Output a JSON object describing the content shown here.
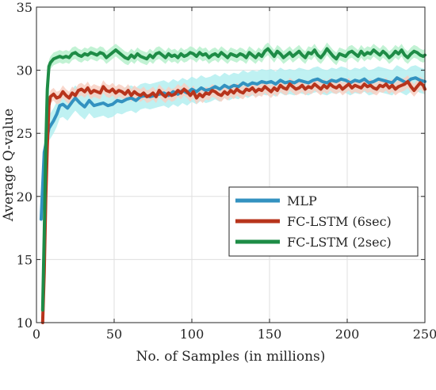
{
  "chart_data": {
    "type": "line",
    "title": "",
    "xlabel": "No. of Samples (in millions)",
    "ylabel": "Average Q-value",
    "xlim": [
      0,
      250
    ],
    "ylim": [
      10,
      35
    ],
    "xticks": [
      0,
      50,
      100,
      150,
      200,
      250
    ],
    "yticks": [
      10,
      15,
      20,
      25,
      30,
      35
    ],
    "grid": true,
    "legend_position": "right-center",
    "series": [
      {
        "name": "MLP",
        "color": "#3392c0",
        "band_color": "#b4eef0",
        "band_halfwidth": 1.0,
        "x": [
          3,
          5,
          8,
          11,
          13,
          15,
          17,
          20,
          23,
          25,
          28,
          31,
          34,
          37,
          40,
          43,
          46,
          49,
          52,
          55,
          58,
          61,
          64,
          67,
          70,
          73,
          76,
          79,
          82,
          85,
          88,
          91,
          94,
          97,
          100,
          103,
          106,
          109,
          112,
          115,
          118,
          121,
          124,
          127,
          130,
          133,
          136,
          139,
          142,
          145,
          148,
          151,
          154,
          157,
          160,
          163,
          166,
          169,
          172,
          175,
          178,
          181,
          184,
          187,
          190,
          193,
          196,
          199,
          202,
          205,
          208,
          211,
          214,
          217,
          220,
          223,
          226,
          229,
          232,
          235,
          238,
          241,
          244,
          247,
          250
        ],
        "y": [
          18.2,
          23.5,
          25.4,
          26.0,
          26.5,
          27.2,
          27.3,
          27.0,
          27.5,
          27.8,
          27.4,
          27.1,
          27.6,
          27.2,
          27.3,
          27.4,
          27.2,
          27.3,
          27.6,
          27.5,
          27.7,
          27.8,
          27.6,
          27.9,
          28.0,
          27.9,
          28.0,
          28.1,
          28.2,
          28.0,
          28.3,
          28.1,
          28.4,
          28.2,
          28.5,
          28.3,
          28.6,
          28.4,
          28.5,
          28.7,
          28.5,
          28.8,
          28.6,
          28.8,
          28.7,
          29.0,
          28.8,
          29.0,
          28.9,
          29.1,
          29.0,
          29.1,
          28.9,
          29.2,
          29.0,
          29.1,
          29.0,
          29.2,
          29.1,
          29.0,
          29.2,
          29.3,
          29.1,
          29.0,
          29.2,
          29.1,
          29.3,
          29.2,
          29.0,
          29.2,
          29.1,
          29.3,
          29.0,
          29.1,
          29.3,
          29.2,
          29.1,
          29.0,
          29.4,
          29.2,
          29.0,
          29.3,
          29.4,
          29.2,
          29.1
        ]
      },
      {
        "name": "FC-LSTM (6sec)",
        "color": "#b7341c",
        "band_color": "#f8cfc2",
        "band_halfwidth": 0.5,
        "x": [
          4,
          5,
          6,
          7,
          8,
          9,
          11,
          13,
          15,
          17,
          19,
          21,
          23,
          25,
          27,
          29,
          31,
          33,
          35,
          37,
          39,
          41,
          43,
          45,
          47,
          49,
          51,
          53,
          55,
          57,
          59,
          61,
          63,
          65,
          67,
          69,
          71,
          73,
          75,
          77,
          79,
          81,
          83,
          85,
          87,
          89,
          91,
          93,
          95,
          97,
          99,
          101,
          103,
          105,
          107,
          109,
          111,
          113,
          115,
          117,
          119,
          121,
          123,
          125,
          127,
          129,
          131,
          133,
          135,
          137,
          139,
          141,
          143,
          145,
          147,
          149,
          151,
          153,
          155,
          157,
          159,
          161,
          163,
          165,
          167,
          169,
          171,
          173,
          175,
          177,
          179,
          181,
          183,
          185,
          187,
          189,
          191,
          193,
          195,
          197,
          199,
          201,
          203,
          205,
          207,
          209,
          211,
          213,
          215,
          217,
          219,
          221,
          223,
          225,
          227,
          229,
          231,
          233,
          235,
          237,
          239,
          241,
          243,
          245,
          247,
          249,
          250
        ],
        "y": [
          10.0,
          14.0,
          20.0,
          24.0,
          27.2,
          27.9,
          28.1,
          27.8,
          27.9,
          28.3,
          28.0,
          27.8,
          28.2,
          28.0,
          28.4,
          28.5,
          28.3,
          28.6,
          28.2,
          28.4,
          28.3,
          28.2,
          28.7,
          28.4,
          28.3,
          28.5,
          28.2,
          28.4,
          28.3,
          28.1,
          28.4,
          28.0,
          28.3,
          28.1,
          28.0,
          28.2,
          27.9,
          28.0,
          28.2,
          27.9,
          28.4,
          28.1,
          27.9,
          28.2,
          28.0,
          28.1,
          28.4,
          28.2,
          28.5,
          28.3,
          28.0,
          28.3,
          27.8,
          28.1,
          27.9,
          28.2,
          28.1,
          28.4,
          28.3,
          28.1,
          28.0,
          28.3,
          28.1,
          28.4,
          28.2,
          28.5,
          28.3,
          28.2,
          28.5,
          28.4,
          28.6,
          28.3,
          28.5,
          28.4,
          28.7,
          28.5,
          28.3,
          28.6,
          28.4,
          28.8,
          28.6,
          28.5,
          28.9,
          28.7,
          28.5,
          28.6,
          28.8,
          28.5,
          28.7,
          28.6,
          28.9,
          28.7,
          28.5,
          28.8,
          28.6,
          28.9,
          28.7,
          28.6,
          28.8,
          28.5,
          28.7,
          28.9,
          28.6,
          28.8,
          28.7,
          28.6,
          28.9,
          28.7,
          28.8,
          28.6,
          28.5,
          28.8,
          28.7,
          28.9,
          28.6,
          28.8,
          28.5,
          28.7,
          28.8,
          28.9,
          29.1,
          28.7,
          28.4,
          28.7,
          29.0,
          28.8,
          28.5
        ]
      },
      {
        "name": "FC-LSTM (2sec)",
        "color": "#1e8c46",
        "band_color": "#b7f0cc",
        "band_halfwidth": 0.5,
        "x": [
          4,
          5,
          6,
          7,
          8,
          9,
          11,
          13,
          15,
          17,
          19,
          21,
          23,
          25,
          27,
          29,
          31,
          33,
          35,
          37,
          39,
          41,
          43,
          45,
          47,
          49,
          51,
          53,
          55,
          57,
          59,
          61,
          63,
          65,
          67,
          69,
          71,
          73,
          75,
          77,
          79,
          81,
          83,
          85,
          87,
          89,
          91,
          93,
          95,
          97,
          99,
          101,
          103,
          105,
          107,
          109,
          111,
          113,
          115,
          117,
          119,
          121,
          123,
          125,
          127,
          129,
          131,
          133,
          135,
          137,
          139,
          141,
          143,
          145,
          147,
          149,
          151,
          153,
          155,
          157,
          159,
          161,
          163,
          165,
          167,
          169,
          171,
          173,
          175,
          177,
          179,
          181,
          183,
          185,
          187,
          189,
          191,
          193,
          195,
          197,
          199,
          201,
          203,
          205,
          207,
          209,
          211,
          213,
          215,
          217,
          219,
          221,
          223,
          225,
          227,
          229,
          231,
          233,
          235,
          237,
          239,
          241,
          243,
          245,
          247,
          249,
          250
        ],
        "y": [
          11.0,
          17.0,
          24.0,
          28.5,
          30.3,
          30.6,
          30.9,
          31.0,
          31.1,
          31.0,
          31.1,
          31.0,
          31.3,
          31.4,
          31.2,
          31.1,
          31.3,
          31.2,
          31.4,
          31.3,
          31.2,
          31.4,
          31.3,
          31.0,
          31.2,
          31.4,
          31.6,
          31.4,
          31.2,
          31.0,
          30.9,
          31.2,
          31.0,
          31.3,
          31.1,
          31.0,
          30.9,
          31.2,
          31.0,
          31.3,
          31.4,
          31.2,
          31.0,
          31.3,
          31.1,
          31.2,
          31.0,
          31.3,
          31.1,
          31.2,
          31.4,
          31.3,
          31.1,
          31.4,
          31.2,
          31.3,
          31.0,
          31.2,
          31.3,
          31.1,
          31.4,
          31.2,
          31.0,
          31.3,
          31.2,
          31.1,
          31.3,
          31.2,
          31.0,
          31.4,
          31.2,
          31.0,
          31.3,
          31.1,
          31.5,
          31.7,
          31.4,
          31.1,
          31.5,
          31.3,
          31.0,
          31.2,
          31.4,
          31.1,
          31.3,
          31.5,
          31.2,
          31.0,
          31.4,
          31.3,
          31.6,
          31.2,
          31.0,
          31.3,
          31.7,
          31.4,
          31.1,
          30.9,
          31.3,
          31.2,
          31.1,
          31.4,
          31.5,
          31.3,
          31.1,
          31.5,
          31.2,
          31.4,
          31.3,
          31.6,
          31.4,
          31.2,
          31.5,
          31.3,
          31.0,
          31.2,
          31.5,
          31.3,
          31.6,
          31.2,
          31.0,
          31.3,
          31.5,
          31.4,
          31.2,
          31.1,
          31.2
        ]
      }
    ]
  }
}
